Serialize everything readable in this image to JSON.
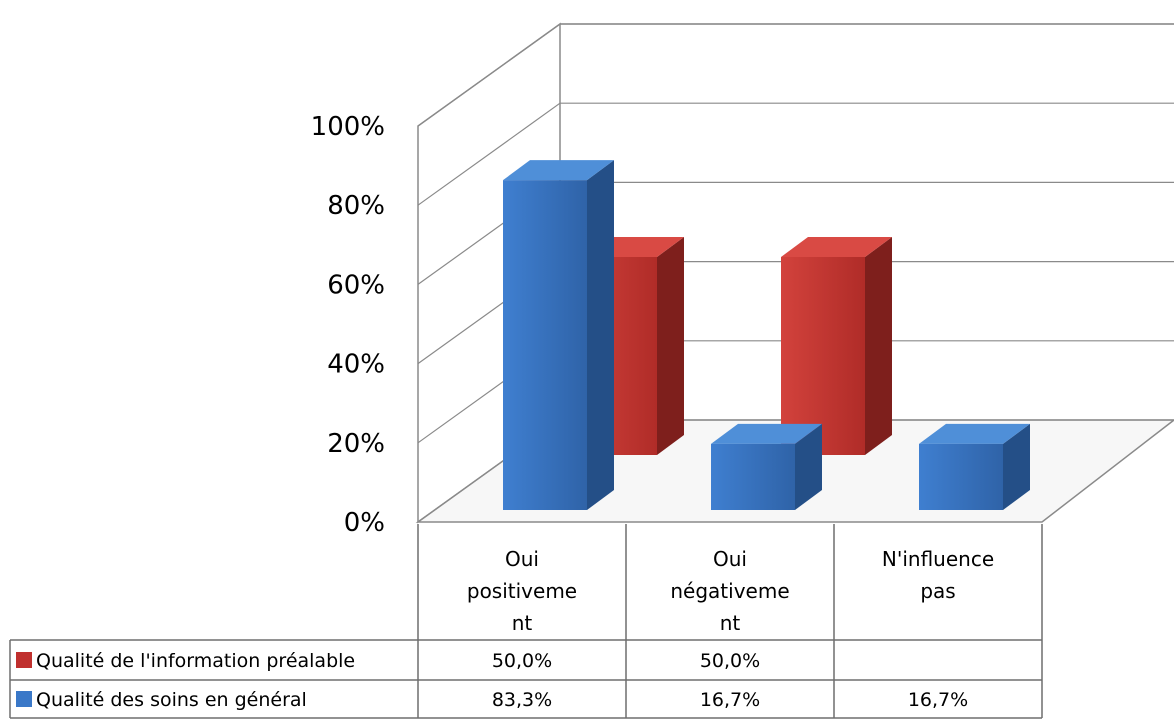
{
  "chart_data": {
    "type": "bar",
    "style": "3d-clustered-with-data-table",
    "categories": [
      "Oui positivement",
      "Oui négativement",
      "N'influence pas"
    ],
    "category_label_lines": [
      [
        "Oui",
        "positiveme",
        "nt"
      ],
      [
        "Oui",
        "négativeme",
        "nt"
      ],
      [
        "N'influence",
        "pas"
      ]
    ],
    "series": [
      {
        "name": "Qualité de l'information préalable",
        "color": "#c0302e",
        "values": [
          50.0,
          50.0,
          null
        ],
        "labels": [
          "50,0%",
          "50,0%",
          ""
        ]
      },
      {
        "name": "Qualité des soins en général",
        "color": "#3a78c8",
        "values": [
          83.3,
          16.7,
          16.7
        ],
        "labels": [
          "83,3%",
          "16,7%",
          "16,7%"
        ]
      }
    ],
    "yticks": [
      "0%",
      "20%",
      "40%",
      "60%",
      "80%",
      "100%"
    ],
    "ylim": [
      0,
      100
    ],
    "grid": true,
    "legend": "data-table-left",
    "xlabel": "",
    "ylabel": ""
  }
}
